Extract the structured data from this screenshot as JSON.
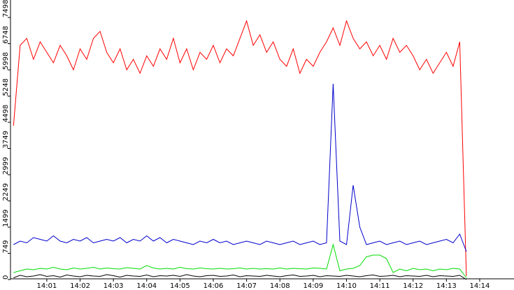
{
  "chart_data": {
    "type": "line",
    "x": [
      0,
      0.2,
      0.4,
      0.6,
      0.8,
      1,
      1.2,
      1.4,
      1.6,
      1.8,
      2,
      2.2,
      2.4,
      2.6,
      2.8,
      3,
      3.2,
      3.4,
      3.6,
      3.8,
      4,
      4.2,
      4.4,
      4.6,
      4.8,
      5,
      5.2,
      5.4,
      5.6,
      5.8,
      6,
      6.2,
      6.4,
      6.6,
      6.8,
      7,
      7.2,
      7.4,
      7.6,
      7.8,
      8,
      8.2,
      8.4,
      8.6,
      8.8,
      9,
      9.2,
      9.4,
      9.6,
      9.8,
      10,
      10.2,
      10.4,
      10.6,
      10.8,
      11,
      11.2,
      11.4,
      11.6,
      11.8,
      12,
      12.2,
      12.4,
      12.6,
      12.8,
      13,
      13.2,
      13.4,
      13.6
    ],
    "series": [
      {
        "color": "#ff0000",
        "values": [
          4400,
          6700,
          6900,
          6300,
          6800,
          6500,
          6200,
          6700,
          6400,
          6000,
          6600,
          6300,
          6900,
          7100,
          6500,
          6200,
          6600,
          6000,
          6300,
          5900,
          6400,
          6100,
          6600,
          6300,
          6900,
          6200,
          6600,
          6000,
          6500,
          6300,
          6700,
          6200,
          6600,
          6400,
          6900,
          7400,
          6700,
          7000,
          6500,
          6800,
          6300,
          6100,
          6600,
          5900,
          6300,
          6100,
          6500,
          6800,
          7200,
          6700,
          7400,
          6900,
          6600,
          6800,
          6400,
          6700,
          6300,
          6900,
          6500,
          6700,
          6400,
          6000,
          6300,
          5900,
          6200,
          6500,
          6100,
          6800,
          100
        ]
      },
      {
        "color": "#0000cc",
        "values": [
          1000,
          1100,
          1050,
          1200,
          1150,
          1100,
          1250,
          1100,
          1050,
          1150,
          1100,
          1200,
          1050,
          1100,
          1150,
          1100,
          1200,
          1050,
          1150,
          1100,
          1250,
          1100,
          1200,
          1050,
          1150,
          1100,
          1050,
          1000,
          1100,
          1050,
          1150,
          1050,
          1100,
          1000,
          1050,
          1100,
          1050,
          1000,
          1100,
          1050,
          1000,
          1050,
          1100,
          1000,
          1050,
          1100,
          1000,
          1050,
          5600,
          1100,
          1000,
          2700,
          1500,
          1000,
          1050,
          1100,
          1000,
          1050,
          1100,
          1000,
          1050,
          1100,
          1000,
          1050,
          1100,
          1150,
          1050,
          1300,
          800
        ]
      },
      {
        "color": "#00dd00",
        "values": [
          200,
          250,
          300,
          280,
          320,
          300,
          350,
          300,
          280,
          330,
          300,
          320,
          350,
          300,
          330,
          310,
          300,
          340,
          320,
          300,
          400,
          330,
          300,
          320,
          300,
          350,
          310,
          300,
          330,
          310,
          300,
          320,
          300,
          310,
          330,
          300,
          320,
          300,
          310,
          300,
          330,
          300,
          320,
          310,
          300,
          330,
          320,
          300,
          1000,
          250,
          300,
          320,
          400,
          650,
          700,
          700,
          600,
          200,
          300,
          250,
          320,
          280,
          300,
          250,
          300,
          280,
          320,
          300,
          50
        ]
      },
      {
        "color": "#000000",
        "values": [
          50,
          120,
          80,
          100,
          140,
          90,
          110,
          70,
          130,
          100,
          80,
          120,
          100,
          90,
          140,
          110,
          70,
          120,
          100,
          90,
          130,
          80,
          110,
          100,
          120,
          90,
          140,
          100,
          80,
          110,
          120,
          90,
          100,
          130,
          80,
          110,
          100,
          90,
          120,
          100,
          80,
          110,
          130,
          90,
          100,
          120,
          80,
          110,
          100,
          90,
          120,
          100,
          80,
          110,
          130,
          90,
          100,
          120,
          80,
          110,
          100,
          90,
          120,
          80,
          110,
          100,
          90,
          120,
          0
        ]
      }
    ],
    "xlim": [
      -0.09,
      15.03
    ],
    "xticks": [
      {
        "value": 1,
        "label": "14:01"
      },
      {
        "value": 2,
        "label": "14:02"
      },
      {
        "value": 3,
        "label": "14:03"
      },
      {
        "value": 4,
        "label": "14:04"
      },
      {
        "value": 5,
        "label": "14:05"
      },
      {
        "value": 6,
        "label": "14:06"
      },
      {
        "value": 7,
        "label": "14:07"
      },
      {
        "value": 8,
        "label": "14:08"
      },
      {
        "value": 9,
        "label": "14:09"
      },
      {
        "value": 10,
        "label": "14:10"
      },
      {
        "value": 11,
        "label": "14:11"
      },
      {
        "value": 12,
        "label": "14:12"
      },
      {
        "value": 13,
        "label": "14:13"
      },
      {
        "value": 14,
        "label": "14:14"
      }
    ],
    "ylim": [
      0,
      7498
    ],
    "yticks": [
      0,
      749,
      1499,
      2249,
      2999,
      3749,
      4498,
      5248,
      5998,
      6748,
      7498
    ]
  }
}
